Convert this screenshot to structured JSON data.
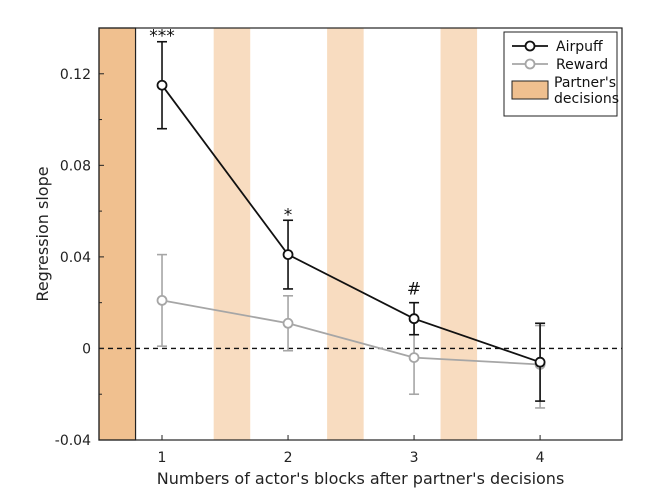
{
  "chart_data": {
    "type": "line",
    "xlabel": "Numbers of actor's blocks after partner's decisions",
    "ylabel": "Regression slope",
    "xlim": [
      0.5,
      4.65
    ],
    "ylim": [
      -0.04,
      0.14
    ],
    "x_ticks": [
      1,
      2,
      3,
      4
    ],
    "y_ticks": [
      -0.04,
      0,
      0.04,
      0.08,
      0.12
    ],
    "y_tick_labels": [
      "-0.04",
      "0",
      "0.04",
      "0.08",
      "0.12"
    ],
    "reference_line": {
      "y": 0,
      "style": "dashed"
    },
    "series": [
      {
        "name": "Airpuff",
        "color": "#111111",
        "x": [
          1,
          2,
          3,
          4
        ],
        "y": [
          0.115,
          0.041,
          0.013,
          -0.006
        ],
        "err_low": [
          0.096,
          0.026,
          0.006,
          -0.023
        ],
        "err_high": [
          0.134,
          0.056,
          0.02,
          0.011
        ]
      },
      {
        "name": "Reward",
        "color": "#a6a6a6",
        "x": [
          1,
          2,
          3,
          4
        ],
        "y": [
          0.021,
          0.011,
          -0.004,
          -0.007
        ],
        "err_low": [
          0.001,
          -0.001,
          -0.02,
          -0.026
        ],
        "err_high": [
          0.041,
          0.023,
          0.012,
          0.01
        ]
      }
    ],
    "shaded_regions": [
      {
        "x_start": 0.5,
        "x_end": 0.79,
        "color": "#f0c08f",
        "outlined": true
      },
      {
        "x_start": 1.41,
        "x_end": 1.7,
        "color": "#f8dcc0",
        "outlined": false
      },
      {
        "x_start": 2.31,
        "x_end": 2.6,
        "color": "#f8dcc0",
        "outlined": false
      },
      {
        "x_start": 3.21,
        "x_end": 3.5,
        "color": "#f8dcc0",
        "outlined": false
      }
    ],
    "significance_labels": [
      {
        "x": 1,
        "text": "***"
      },
      {
        "x": 2,
        "text": "*"
      },
      {
        "x": 3,
        "text": "#"
      }
    ],
    "legend": {
      "position": "top-right",
      "entries": [
        {
          "label": "Airpuff",
          "kind": "line",
          "color": "#111111"
        },
        {
          "label": "Reward",
          "kind": "line",
          "color": "#a6a6a6"
        },
        {
          "label": "Partner's decisions",
          "label_lines": [
            "Partner's",
            "decisions"
          ],
          "kind": "patch",
          "color": "#f0c08f"
        }
      ]
    },
    "grid": false
  }
}
